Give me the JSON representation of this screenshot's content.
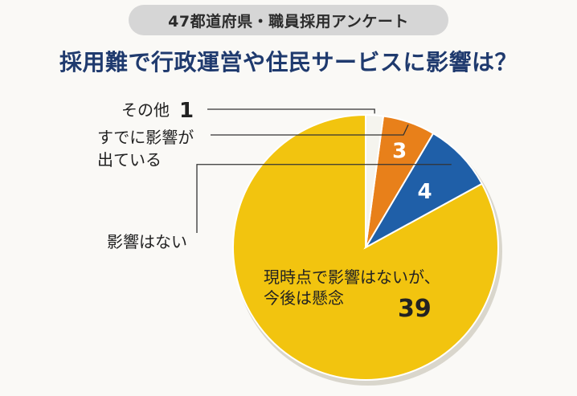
{
  "header": {
    "badge": "47都道府県・職員採用アンケート",
    "title": "採用難で行政運営や住民サービスに影響は？"
  },
  "chart_data": {
    "type": "pie",
    "title": "採用難で行政運営や住民サービスに影響は？",
    "subtitle": "47都道府県・職員採用アンケート",
    "slices": [
      {
        "label": "現時点で影響はないが、今後は懸念",
        "value": 39,
        "color": "#f2c40f"
      },
      {
        "label": "影響はない",
        "value": 4,
        "color": "#1f5fa8"
      },
      {
        "label": "すでに影響が出ている",
        "value": 3,
        "color": "#e8801a"
      },
      {
        "label": "その他",
        "value": 1,
        "color": "#f5f4ee"
      }
    ],
    "start": "12 o'clock",
    "direction": "counterclockwise",
    "labels": {
      "inside_big_line1": "現時点で影響はないが、",
      "inside_big_line2": "今後は懸念",
      "outside_4": "影響はない",
      "outside_3_line1": "すでに影響が",
      "outside_3_line2": "出ている",
      "outside_1": "その他"
    }
  }
}
